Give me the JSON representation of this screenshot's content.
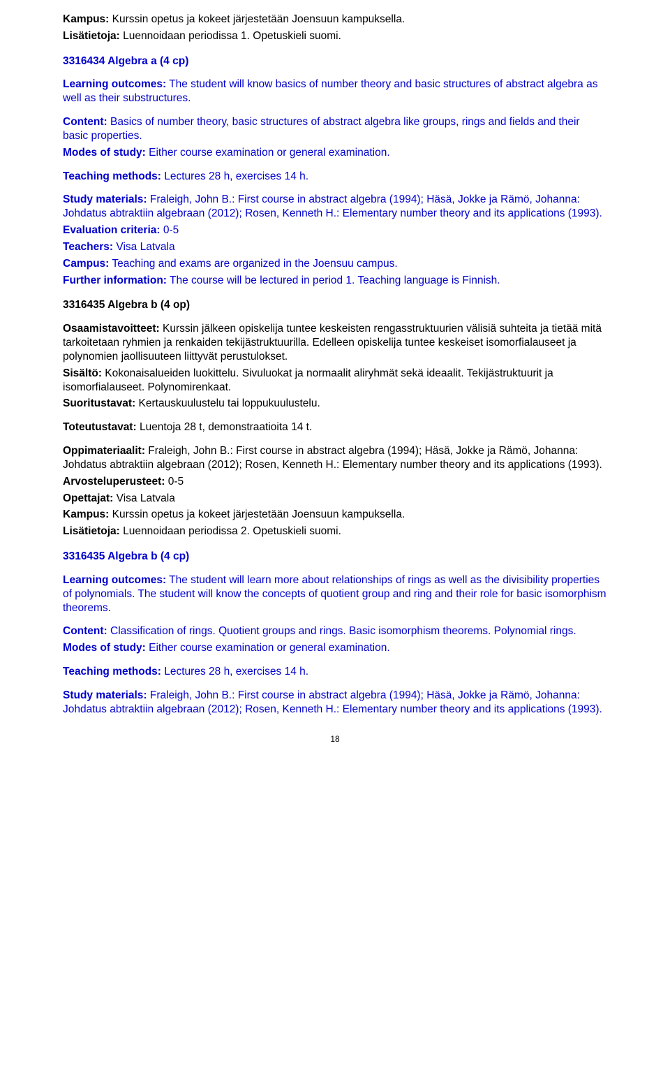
{
  "colors": {
    "text_black": "#000000",
    "text_blue": "#0000cc",
    "background": "#ffffff"
  },
  "typography": {
    "body_fontsize": 15.5,
    "heading_fontsize": 15.5,
    "pagenum_fontsize": 12,
    "font_family": "Arial"
  },
  "top": {
    "kampus_label": "Kampus:",
    "kampus_text": " Kurssin opetus ja kokeet järjestetään Joensuun kampuksella.",
    "lisatietoja_label": "Lisätietoja:",
    "lisatietoja_text": " Luennoidaan periodissa 1. Opetuskieli suomi."
  },
  "course1": {
    "title": "3316434 Algebra a (4 cp)",
    "outcomes_label": "Learning outcomes:",
    "outcomes_text": " The student will know basics of number theory and basic structures of abstract algebra as well as their substructures.",
    "content_label": "Content:",
    "content_text": " Basics of number theory, basic structures of abstract algebra like groups, rings and fields and their basic properties.",
    "modes_label": "Modes of study:",
    "modes_text": " Either course examination or general examination.",
    "methods_label": "Teaching methods:",
    "methods_text": " Lectures 28 h, exercises 14 h.",
    "materials_label": "Study materials:",
    "materials_text": " Fraleigh, John B.: First course in abstract algebra (1994); Häsä, Jokke ja Rämö, Johanna: Johdatus abtraktiin algebraan (2012); Rosen, Kenneth H.: Elementary number theory and its applications (1993).",
    "eval_label": "Evaluation criteria:",
    "eval_text": " 0-5",
    "teachers_label": "Teachers:",
    "teachers_text": " Visa Latvala",
    "campus_label": "Campus:",
    "campus_text": " Teaching and exams are organized in the Joensuu campus.",
    "further_label": "Further information:",
    "further_text": " The course will be lectured in period 1. Teaching language is Finnish."
  },
  "course2": {
    "title": "3316435 Algebra b (4 op)",
    "osaamis_label": "Osaamistavoitteet:",
    "osaamis_text": " Kurssin jälkeen opiskelija tuntee keskeisten rengasstruktuurien välisiä suhteita ja tietää mitä tarkoitetaan ryhmien ja renkaiden tekijästruktuurilla. Edelleen opiskelija tuntee keskeiset isomorfialauseet ja polynomien jaollisuuteen liittyvät perustulokset.",
    "sisalto_label": "Sisältö:",
    "sisalto_text": " Kokonaisalueiden luokittelu. Sivuluokat ja normaalit aliryhmät sekä ideaalit. Tekijästruktuurit ja isomorfialauseet. Polynomirenkaat.",
    "suoritus_label": "Suoritustavat:",
    "suoritus_text": " Kertauskuulustelu tai loppukuulustelu.",
    "toteutus_label": "Toteutustavat:",
    "toteutus_text": " Luentoja 28 t, demonstraatioita 14 t.",
    "oppi_label": "Oppimateriaalit:",
    "oppi_text": " Fraleigh, John B.: First course in abstract algebra (1994); Häsä, Jokke ja Rämö, Johanna: Johdatus abtraktiin algebraan (2012); Rosen, Kenneth H.: Elementary number theory and its applications (1993).",
    "arvo_label": "Arvosteluperusteet:",
    "arvo_text": " 0-5",
    "opettajat_label": "Opettajat:",
    "opettajat_text": " Visa Latvala",
    "kampus_label": "Kampus:",
    "kampus_text": " Kurssin opetus ja kokeet järjestetään Joensuun kampuksella.",
    "lisatietoja_label": "Lisätietoja:",
    "lisatietoja_text": " Luennoidaan periodissa 2. Opetuskieli suomi."
  },
  "course3": {
    "title": "3316435 Algebra b (4 cp)",
    "outcomes_label": "Learning outcomes:",
    "outcomes_text": " The student will learn more about relationships of rings as well as the divisibility properties of polynomials. The student will know the concepts of quotient group and ring and their role for basic isomorphism theorems.",
    "content_label": "Content:",
    "content_text": " Classification of rings. Quotient groups and rings. Basic isomorphism theorems. Polynomial rings.",
    "modes_label": "Modes of study:",
    "modes_text": " Either course examination or general examination.",
    "methods_label": "Teaching methods:",
    "methods_text": " Lectures 28 h, exercises 14 h.",
    "materials_label": "Study materials:",
    "materials_text": " Fraleigh, John B.: First course in abstract algebra (1994); Häsä, Jokke ja Rämö, Johanna: Johdatus abtraktiin algebraan (2012); Rosen, Kenneth H.: Elementary number theory and its applications (1993)."
  },
  "pagenum": "18"
}
